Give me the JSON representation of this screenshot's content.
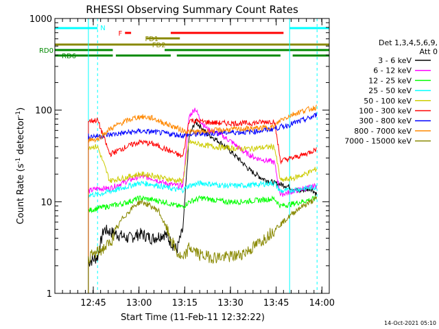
{
  "chart_data": {
    "type": "line",
    "title": "RHESSI Observing Summary Count Rates",
    "xlabel": "Start Time (11-Feb-11 12:32:22)",
    "ylabel_main": "Count Rate (s",
    "ylabel_exp1": "-1",
    "ylabel_mid": " detector",
    "ylabel_exp2": "-1",
    "ylabel_end": ")",
    "y_scale": "log",
    "ylim": [
      1,
      1000
    ],
    "xlim_minutes": [
      0,
      90
    ],
    "x_ticks": [
      {
        "minute": 12.6,
        "label": "12:45"
      },
      {
        "minute": 27.6,
        "label": "13:00"
      },
      {
        "minute": 42.6,
        "label": "13:15"
      },
      {
        "minute": 57.6,
        "label": "13:30"
      },
      {
        "minute": 72.6,
        "label": "13:45"
      },
      {
        "minute": 87.6,
        "label": "14:00"
      }
    ],
    "y_ticks": [
      {
        "value": 1,
        "label": "1"
      },
      {
        "value": 10,
        "label": "10"
      },
      {
        "value": 100,
        "label": "100"
      },
      {
        "value": 1000,
        "label": "1000"
      }
    ],
    "legend_placement": "right",
    "legend_header": [
      "Det 1,3,4,5,6,9,",
      "Att 0"
    ],
    "series": [
      {
        "name": "3 - 6 keV",
        "color": "#000000",
        "points": [
          [
            11,
            2.2
          ],
          [
            14,
            2.5
          ],
          [
            16,
            5
          ],
          [
            20,
            4.5
          ],
          [
            24,
            4
          ],
          [
            28,
            4.5
          ],
          [
            32,
            4
          ],
          [
            36,
            4.5
          ],
          [
            40,
            3
          ],
          [
            42,
            5
          ],
          [
            44,
            50
          ],
          [
            46,
            75
          ],
          [
            48,
            65
          ],
          [
            50,
            55
          ],
          [
            52,
            50
          ],
          [
            54,
            45
          ],
          [
            56,
            40
          ],
          [
            60,
            30
          ],
          [
            64,
            22
          ],
          [
            68,
            18
          ],
          [
            72,
            16
          ],
          [
            76,
            15
          ],
          [
            80,
            13
          ],
          [
            84,
            14
          ],
          [
            86,
            12
          ]
        ]
      },
      {
        "name": "6 - 12 keV",
        "color": "#ff00ff",
        "points": [
          [
            11,
            13
          ],
          [
            14,
            14
          ],
          [
            18,
            14
          ],
          [
            22,
            16
          ],
          [
            26,
            18
          ],
          [
            28,
            19
          ],
          [
            32,
            18
          ],
          [
            36,
            16
          ],
          [
            40,
            15
          ],
          [
            42,
            15
          ],
          [
            44,
            85
          ],
          [
            46,
            105
          ],
          [
            48,
            75
          ],
          [
            50,
            62
          ],
          [
            54,
            55
          ],
          [
            58,
            45
          ],
          [
            62,
            35
          ],
          [
            66,
            30
          ],
          [
            70,
            28
          ],
          [
            72,
            27
          ],
          [
            74,
            12
          ],
          [
            78,
            13
          ],
          [
            82,
            14
          ],
          [
            86,
            15
          ]
        ]
      },
      {
        "name": "12 - 25 keV",
        "color": "#00ff00",
        "points": [
          [
            11,
            8
          ],
          [
            14,
            8.5
          ],
          [
            18,
            9
          ],
          [
            22,
            9.5
          ],
          [
            26,
            10.5
          ],
          [
            28,
            11
          ],
          [
            32,
            10.5
          ],
          [
            36,
            10
          ],
          [
            40,
            9
          ],
          [
            42,
            8.8
          ],
          [
            44,
            10
          ],
          [
            48,
            11
          ],
          [
            52,
            10.5
          ],
          [
            56,
            10
          ],
          [
            60,
            10
          ],
          [
            64,
            10.2
          ],
          [
            68,
            10.5
          ],
          [
            72,
            10.8
          ],
          [
            74,
            9
          ],
          [
            78,
            9.5
          ],
          [
            82,
            10.2
          ],
          [
            86,
            11
          ]
        ]
      },
      {
        "name": "25 - 50 keV",
        "color": "#00ffff",
        "points": [
          [
            11,
            12
          ],
          [
            14,
            12
          ],
          [
            18,
            13
          ],
          [
            22,
            14
          ],
          [
            26,
            15.5
          ],
          [
            28,
            16
          ],
          [
            32,
            15.5
          ],
          [
            36,
            14.5
          ],
          [
            40,
            13.5
          ],
          [
            42,
            13.5
          ],
          [
            44,
            15
          ],
          [
            48,
            16
          ],
          [
            52,
            15.5
          ],
          [
            56,
            15
          ],
          [
            60,
            15
          ],
          [
            64,
            15.2
          ],
          [
            68,
            15.6
          ],
          [
            72,
            16
          ],
          [
            74,
            13
          ],
          [
            78,
            13.5
          ],
          [
            82,
            14
          ],
          [
            86,
            14.5
          ]
        ]
      },
      {
        "name": "50 - 100 keV",
        "color": "#cccc00",
        "points": [
          [
            11,
            40
          ],
          [
            14,
            40
          ],
          [
            18,
            17
          ],
          [
            22,
            18
          ],
          [
            26,
            19.5
          ],
          [
            28,
            20
          ],
          [
            32,
            19.5
          ],
          [
            36,
            18
          ],
          [
            40,
            17
          ],
          [
            42,
            17
          ],
          [
            44,
            45
          ],
          [
            48,
            42
          ],
          [
            52,
            40
          ],
          [
            56,
            39
          ],
          [
            60,
            38
          ],
          [
            64,
            38
          ],
          [
            68,
            39
          ],
          [
            72,
            40
          ],
          [
            74,
            17
          ],
          [
            78,
            18
          ],
          [
            82,
            20
          ],
          [
            86,
            23
          ]
        ]
      },
      {
        "name": "100 - 300 keV",
        "color": "#ff0000",
        "points": [
          [
            11,
            76
          ],
          [
            14,
            78
          ],
          [
            18,
            33
          ],
          [
            22,
            38
          ],
          [
            26,
            43
          ],
          [
            28,
            45
          ],
          [
            32,
            43
          ],
          [
            36,
            38
          ],
          [
            40,
            33
          ],
          [
            42,
            31
          ],
          [
            44,
            78
          ],
          [
            48,
            75
          ],
          [
            52,
            73
          ],
          [
            56,
            72
          ],
          [
            60,
            72
          ],
          [
            64,
            72
          ],
          [
            68,
            74
          ],
          [
            72,
            76
          ],
          [
            74,
            28
          ],
          [
            78,
            30
          ],
          [
            82,
            33
          ],
          [
            86,
            38
          ]
        ]
      },
      {
        "name": "300 - 800 keV",
        "color": "#0000ff",
        "points": [
          [
            11,
            52
          ],
          [
            14,
            52
          ],
          [
            18,
            54
          ],
          [
            22,
            56
          ],
          [
            26,
            58
          ],
          [
            28,
            59
          ],
          [
            32,
            58
          ],
          [
            36,
            56
          ],
          [
            40,
            54
          ],
          [
            42,
            53
          ],
          [
            44,
            54
          ],
          [
            48,
            55
          ],
          [
            52,
            56
          ],
          [
            56,
            57
          ],
          [
            60,
            57.5
          ],
          [
            64,
            58
          ],
          [
            68,
            60
          ],
          [
            72,
            63
          ],
          [
            76,
            68
          ],
          [
            80,
            75
          ],
          [
            84,
            83
          ],
          [
            86,
            90
          ]
        ]
      },
      {
        "name": "800 - 7000 keV",
        "color": "#ff8800",
        "points": [
          [
            11,
            48
          ],
          [
            14,
            48
          ],
          [
            18,
            62
          ],
          [
            22,
            73
          ],
          [
            26,
            82
          ],
          [
            28,
            85
          ],
          [
            32,
            82
          ],
          [
            36,
            72
          ],
          [
            40,
            64
          ],
          [
            42,
            60
          ],
          [
            44,
            58
          ],
          [
            48,
            58
          ],
          [
            52,
            60
          ],
          [
            56,
            61
          ],
          [
            60,
            62
          ],
          [
            64,
            63
          ],
          [
            68,
            64
          ],
          [
            72,
            66
          ],
          [
            74,
            78
          ],
          [
            78,
            90
          ],
          [
            82,
            100
          ],
          [
            86,
            108
          ]
        ]
      },
      {
        "name": "7000 - 15000 keV",
        "color": "#888800",
        "points": [
          [
            11,
            2.5
          ],
          [
            14,
            2.8
          ],
          [
            18,
            3.5
          ],
          [
            22,
            6.5
          ],
          [
            26,
            9
          ],
          [
            28,
            10
          ],
          [
            30,
            9.5
          ],
          [
            34,
            8
          ],
          [
            38,
            4
          ],
          [
            40,
            2.8
          ],
          [
            42,
            2.3
          ],
          [
            44,
            3.2
          ],
          [
            48,
            2.6
          ],
          [
            52,
            2.5
          ],
          [
            56,
            2.5
          ],
          [
            60,
            2.6
          ],
          [
            64,
            3
          ],
          [
            68,
            3.8
          ],
          [
            72,
            5
          ],
          [
            76,
            6.5
          ],
          [
            80,
            8.5
          ],
          [
            84,
            10
          ],
          [
            86,
            11
          ]
        ]
      }
    ],
    "state_bars": [
      {
        "label": "N",
        "color": "#00ffff",
        "segments": [
          [
            0,
            14
          ]
        ]
      },
      {
        "label": "",
        "color": "#00ffff",
        "segments": [
          [
            77,
            90
          ]
        ]
      },
      {
        "label": "F",
        "color": "#ff0000",
        "segments": [
          [
            23,
            25
          ],
          [
            38,
            75
          ]
        ]
      },
      {
        "label": "FD1",
        "color": "#888800",
        "segments": [
          [
            30,
            41
          ]
        ]
      },
      {
        "label": "FD2",
        "color": "#888800",
        "segments": [
          [
            0,
            90
          ]
        ]
      },
      {
        "label": "RD0",
        "color": "#008800",
        "segments": [
          [
            0,
            19
          ],
          [
            36,
            90
          ]
        ]
      },
      {
        "label": "RD6",
        "color": "#008800",
        "segments": [
          [
            0,
            19
          ],
          [
            20,
            38
          ],
          [
            40,
            74
          ],
          [
            78,
            90
          ]
        ]
      }
    ],
    "event_lines": [
      {
        "minute": 11,
        "style": "solid"
      },
      {
        "minute": 14,
        "style": "dashed"
      },
      {
        "minute": 77,
        "style": "solid"
      },
      {
        "minute": 86,
        "style": "dashed"
      }
    ],
    "timestamp": "14-Oct-2021 05:10"
  }
}
